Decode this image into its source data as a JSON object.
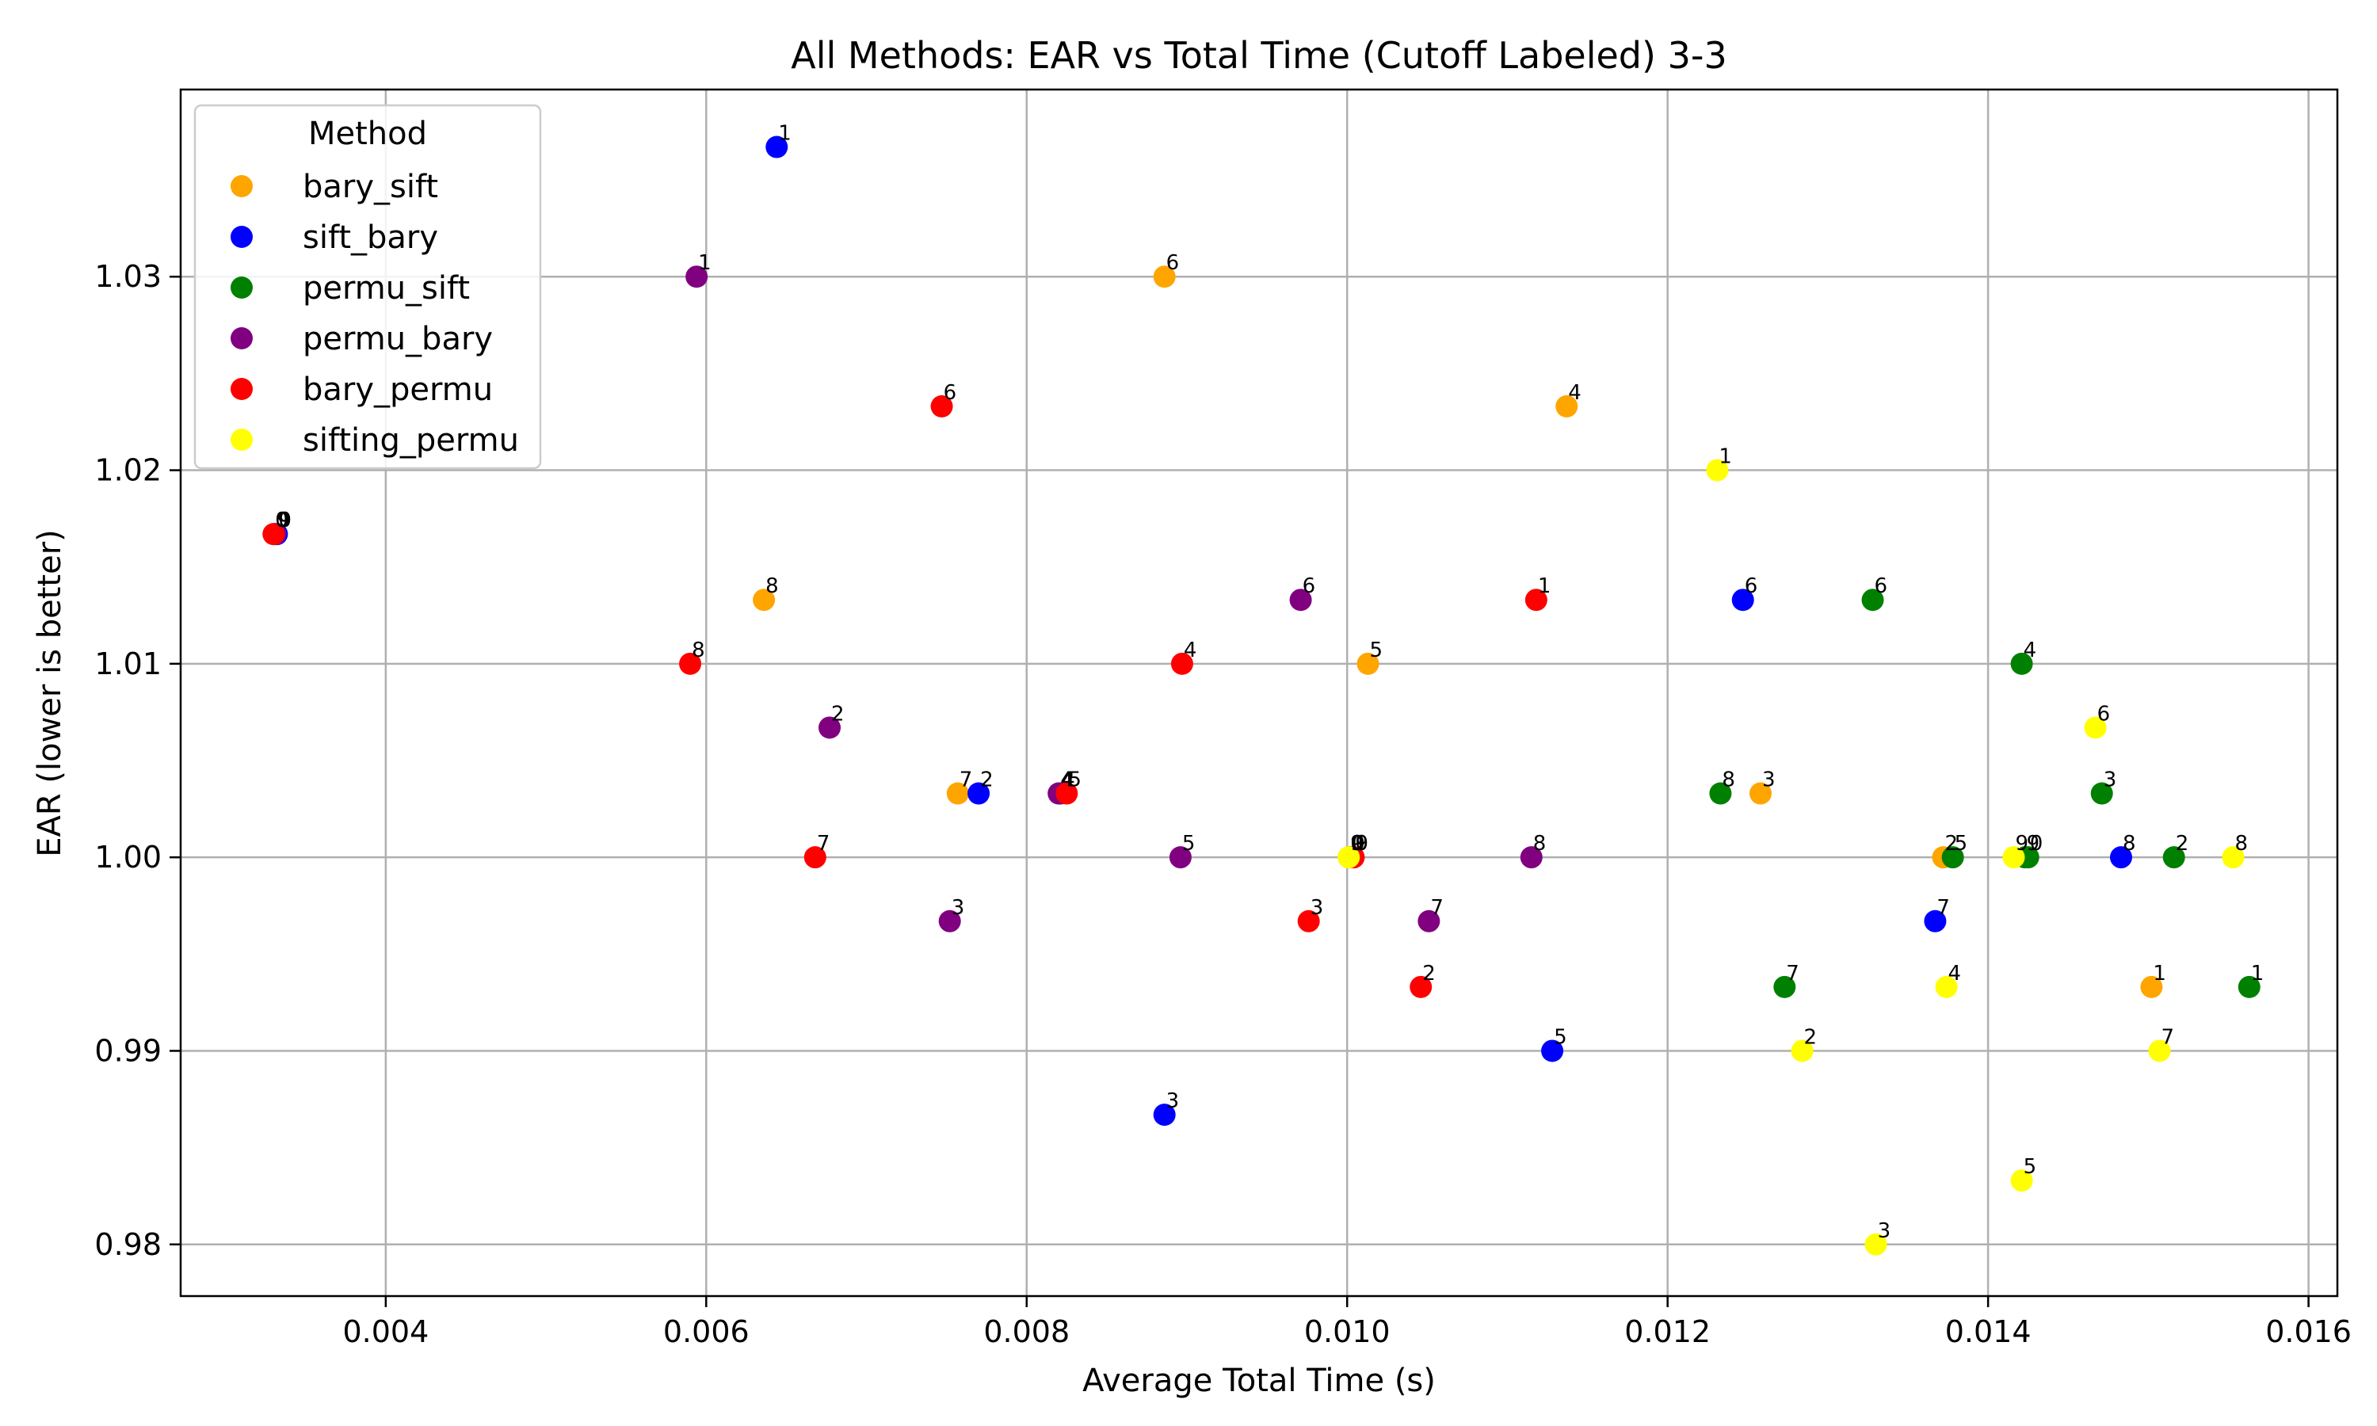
{
  "chart_data": {
    "type": "scatter",
    "title": "All Methods: EAR vs Total Time (Cutoff Labeled) 3-3",
    "xlabel": "Average Total Time (s)",
    "ylabel": "EAR (lower is better)",
    "xlim": [
      0.00272,
      0.01618
    ],
    "ylim": [
      0.97733,
      1.03967
    ],
    "x_ticks": [
      "0.004",
      "0.006",
      "0.008",
      "0.010",
      "0.012",
      "0.014",
      "0.016"
    ],
    "x_tick_values": [
      0.004,
      0.006,
      0.008,
      0.01,
      0.012,
      0.014,
      0.016
    ],
    "y_ticks": [
      "0.98",
      "0.99",
      "1.00",
      "1.01",
      "1.02",
      "1.03"
    ],
    "y_tick_values": [
      0.98,
      0.99,
      1.0,
      1.01,
      1.02,
      1.03
    ],
    "grid": true,
    "legend_title": "Method",
    "legend_position": "top-left",
    "series": [
      {
        "name": "bary_sift",
        "color": "#ffa500",
        "points": [
          {
            "x": 0.01502,
            "y": 0.9933,
            "label": "1"
          },
          {
            "x": 0.01372,
            "y": 1.0,
            "label": "2"
          },
          {
            "x": 0.01258,
            "y": 1.0033,
            "label": "3"
          },
          {
            "x": 0.01137,
            "y": 1.0233,
            "label": "4"
          },
          {
            "x": 0.01013,
            "y": 1.01,
            "label": "5"
          },
          {
            "x": 0.00886,
            "y": 1.03,
            "label": "6"
          },
          {
            "x": 0.00757,
            "y": 1.0033,
            "label": "7"
          },
          {
            "x": 0.00636,
            "y": 1.0133,
            "label": "8"
          },
          {
            "x": 0.01001,
            "y": 1.0,
            "label": "9"
          },
          {
            "x": 0.00332,
            "y": 1.0167,
            "label": "0"
          }
        ]
      },
      {
        "name": "sift_bary",
        "color": "#0000ff",
        "points": [
          {
            "x": 0.00644,
            "y": 1.0367,
            "label": "1"
          },
          {
            "x": 0.0077,
            "y": 1.0033,
            "label": "2"
          },
          {
            "x": 0.00886,
            "y": 0.9867,
            "label": "3"
          },
          {
            "x": 0.00821,
            "y": 1.0033,
            "label": "4"
          },
          {
            "x": 0.01128,
            "y": 0.99,
            "label": "5"
          },
          {
            "x": 0.01247,
            "y": 1.0133,
            "label": "6"
          },
          {
            "x": 0.01367,
            "y": 0.9967,
            "label": "7"
          },
          {
            "x": 0.01483,
            "y": 1.0,
            "label": "8"
          },
          {
            "x": 0.00332,
            "y": 1.0167,
            "label": "9"
          },
          {
            "x": 0.01002,
            "y": 1.0,
            "label": "0"
          }
        ]
      },
      {
        "name": "permu_sift",
        "color": "#008000",
        "points": [
          {
            "x": 0.01563,
            "y": 0.9933,
            "label": "1"
          },
          {
            "x": 0.01516,
            "y": 1.0,
            "label": "2"
          },
          {
            "x": 0.01471,
            "y": 1.0033,
            "label": "3"
          },
          {
            "x": 0.01421,
            "y": 1.01,
            "label": "4"
          },
          {
            "x": 0.01378,
            "y": 1.0,
            "label": "5"
          },
          {
            "x": 0.01328,
            "y": 1.0133,
            "label": "6"
          },
          {
            "x": 0.01273,
            "y": 0.9933,
            "label": "7"
          },
          {
            "x": 0.01233,
            "y": 1.0033,
            "label": "8"
          },
          {
            "x": 0.01423,
            "y": 1.0,
            "label": "9"
          },
          {
            "x": 0.01425,
            "y": 1.0,
            "label": "0"
          }
        ]
      },
      {
        "name": "permu_bary",
        "color": "#800080",
        "points": [
          {
            "x": 0.00594,
            "y": 1.03,
            "label": "1"
          },
          {
            "x": 0.00677,
            "y": 1.0067,
            "label": "2"
          },
          {
            "x": 0.00752,
            "y": 0.9967,
            "label": "3"
          },
          {
            "x": 0.0082,
            "y": 1.0033,
            "label": "4"
          },
          {
            "x": 0.00896,
            "y": 1.0,
            "label": "5"
          },
          {
            "x": 0.00971,
            "y": 1.0133,
            "label": "6"
          },
          {
            "x": 0.01051,
            "y": 0.9967,
            "label": "7"
          },
          {
            "x": 0.01115,
            "y": 1.0,
            "label": "8"
          },
          {
            "x": 0.00331,
            "y": 1.0167,
            "label": "9"
          },
          {
            "x": 0.01004,
            "y": 1.0,
            "label": "0"
          }
        ]
      },
      {
        "name": "bary_permu",
        "color": "#ff0000",
        "points": [
          {
            "x": 0.01118,
            "y": 1.0133,
            "label": "1"
          },
          {
            "x": 0.01046,
            "y": 0.9933,
            "label": "2"
          },
          {
            "x": 0.00976,
            "y": 0.9967,
            "label": "3"
          },
          {
            "x": 0.00897,
            "y": 1.01,
            "label": "4"
          },
          {
            "x": 0.00825,
            "y": 1.0033,
            "label": "5"
          },
          {
            "x": 0.00747,
            "y": 1.0233,
            "label": "6"
          },
          {
            "x": 0.00668,
            "y": 1.0,
            "label": "7"
          },
          {
            "x": 0.0059,
            "y": 1.01,
            "label": "8"
          },
          {
            "x": 0.01004,
            "y": 1.0,
            "label": "9"
          },
          {
            "x": 0.0033,
            "y": 1.0167,
            "label": "0"
          }
        ]
      },
      {
        "name": "sifting_permu",
        "color": "#ffff00",
        "points": [
          {
            "x": 0.01231,
            "y": 1.02,
            "label": "1"
          },
          {
            "x": 0.01284,
            "y": 0.99,
            "label": "2"
          },
          {
            "x": 0.0133,
            "y": 0.98,
            "label": "3"
          },
          {
            "x": 0.01374,
            "y": 0.9933,
            "label": "4"
          },
          {
            "x": 0.01421,
            "y": 0.9833,
            "label": "5"
          },
          {
            "x": 0.01467,
            "y": 1.0067,
            "label": "6"
          },
          {
            "x": 0.01507,
            "y": 0.99,
            "label": "7"
          },
          {
            "x": 0.01553,
            "y": 1.0,
            "label": "8"
          },
          {
            "x": 0.01416,
            "y": 1.0,
            "label": "9"
          },
          {
            "x": 0.01001,
            "y": 1.0,
            "label": "0"
          }
        ]
      }
    ]
  }
}
